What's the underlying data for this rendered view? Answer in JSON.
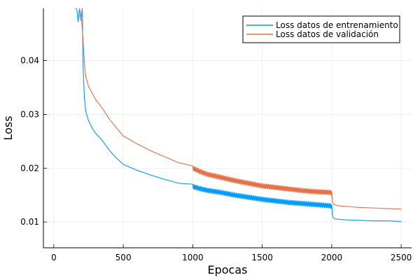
{
  "chart_data": {
    "type": "line",
    "title": "",
    "xlabel": "Epocas",
    "ylabel": "Loss",
    "xlim": [
      -75,
      2575
    ],
    "ylim": [
      0.0052,
      0.0497
    ],
    "xticks": [
      0,
      500,
      1000,
      1500,
      2000,
      2500
    ],
    "xtick_labels": [
      "0",
      "500",
      "1000",
      "1500",
      "2000",
      "2500"
    ],
    "yticks": [
      0.01,
      0.02,
      0.03,
      0.04
    ],
    "ytick_labels": [
      "0.01",
      "0.02",
      "0.03",
      "0.04"
    ],
    "grid": true,
    "legend_position": "top-right",
    "series": [
      {
        "name": "Loss datos de entrenamiento",
        "color": "#009AFA",
        "x": [
          150,
          165,
          175,
          185,
          195,
          205,
          210,
          215,
          220,
          230,
          250,
          275,
          300,
          350,
          400,
          450,
          500,
          600,
          700,
          800,
          900,
          1000,
          1050,
          1100,
          1200,
          1300,
          1400,
          1500,
          1600,
          1700,
          1800,
          1900,
          1990,
          2000,
          2005,
          2010,
          2020,
          2050,
          2100,
          2200,
          2300,
          2400,
          2500
        ],
        "y": [
          0.0497,
          0.0497,
          0.0472,
          0.0497,
          0.0475,
          0.0497,
          0.04,
          0.036,
          0.033,
          0.0305,
          0.0288,
          0.0275,
          0.0265,
          0.0251,
          0.0233,
          0.0219,
          0.0207,
          0.0196,
          0.0187,
          0.0179,
          0.0172,
          0.0166,
          0.0162,
          0.0159,
          0.0155,
          0.015,
          0.0146,
          0.0142,
          0.0139,
          0.0136,
          0.0134,
          0.0132,
          0.013,
          0.0128,
          0.0113,
          0.0108,
          0.0106,
          0.0105,
          0.0104,
          0.0103,
          0.0102,
          0.0102,
          0.0101
        ],
        "oscillation_range": [
          1000,
          2000
        ],
        "oscillation_amplitude": 0.00085
      },
      {
        "name": "Loss datos de validación",
        "color": "#E26F46",
        "x": [
          185,
          200,
          210,
          215,
          220,
          230,
          250,
          275,
          300,
          350,
          400,
          450,
          500,
          600,
          700,
          800,
          900,
          1000,
          1050,
          1100,
          1200,
          1300,
          1400,
          1500,
          1600,
          1700,
          1800,
          1900,
          1990,
          2000,
          2005,
          2010,
          2020,
          2050,
          2100,
          2200,
          2300,
          2400,
          2500
        ],
        "y": [
          0.0497,
          0.0475,
          0.044,
          0.042,
          0.0395,
          0.037,
          0.0352,
          0.034,
          0.0328,
          0.0311,
          0.0291,
          0.0275,
          0.026,
          0.0245,
          0.0232,
          0.0221,
          0.021,
          0.02,
          0.0194,
          0.0189,
          0.0183,
          0.0177,
          0.0172,
          0.0167,
          0.0164,
          0.0161,
          0.0158,
          0.0156,
          0.0155,
          0.0153,
          0.0138,
          0.0134,
          0.0132,
          0.013,
          0.0129,
          0.0127,
          0.0126,
          0.0125,
          0.0124
        ],
        "oscillation_range": [
          1000,
          2000
        ],
        "oscillation_amplitude": 0.00085
      }
    ]
  }
}
